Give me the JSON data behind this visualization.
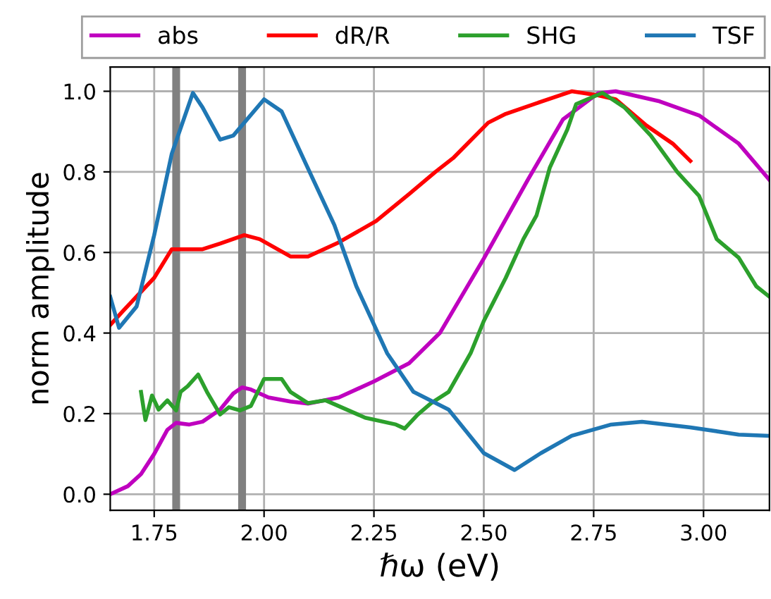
{
  "chart_data": {
    "type": "line",
    "xlabel": "ℏω (eV)",
    "ylabel": "norm amplitude",
    "xlim": [
      1.65,
      3.15
    ],
    "ylim": [
      -0.04,
      1.06
    ],
    "xticks": [
      {
        "value": 1.75,
        "label": "1.75"
      },
      {
        "value": 2.0,
        "label": "2.00"
      },
      {
        "value": 2.25,
        "label": "2.25"
      },
      {
        "value": 2.5,
        "label": "2.50"
      },
      {
        "value": 2.75,
        "label": "2.75"
      },
      {
        "value": 3.0,
        "label": "3.00"
      }
    ],
    "yticks": [
      {
        "value": 0,
        "label": "0.0"
      },
      {
        "value": 0.2,
        "label": "0.2"
      },
      {
        "value": 0.4,
        "label": "0.4"
      },
      {
        "value": 0.6,
        "label": "0.6"
      },
      {
        "value": 0.8,
        "label": "0.8"
      },
      {
        "value": 1.0,
        "label": "1.0"
      }
    ],
    "grid": true,
    "legend": "top",
    "marker": "none",
    "line_style": "solid",
    "ref_lines": [
      {
        "axis": "x",
        "value": 1.8,
        "color": "#808080"
      },
      {
        "axis": "x",
        "value": 1.95,
        "color": "#808080"
      }
    ],
    "series": [
      {
        "name": "abs",
        "color": "#bf00bf",
        "x": [
          1.65,
          1.69,
          1.72,
          1.75,
          1.78,
          1.8,
          1.83,
          1.86,
          1.9,
          1.93,
          1.95,
          1.97,
          2.01,
          2.06,
          2.1,
          2.17,
          2.25,
          2.33,
          2.4,
          2.5,
          2.6,
          2.68,
          2.76,
          2.8,
          2.9,
          2.99,
          3.08,
          3.15
        ],
        "values": [
          0.0,
          0.02,
          0.05,
          0.1,
          0.16,
          0.177,
          0.173,
          0.18,
          0.21,
          0.25,
          0.265,
          0.26,
          0.24,
          0.23,
          0.225,
          0.24,
          0.28,
          0.325,
          0.4,
          0.585,
          0.78,
          0.93,
          0.995,
          1.0,
          0.975,
          0.94,
          0.87,
          0.78
        ]
      },
      {
        "name": "dR/R",
        "color": "#ff0000",
        "x": [
          1.65,
          1.68,
          1.75,
          1.79,
          1.86,
          1.9,
          1.955,
          1.99,
          2.06,
          2.1,
          2.17,
          2.255,
          2.33,
          2.39,
          2.43,
          2.51,
          2.55,
          2.63,
          2.7,
          2.76,
          2.8,
          2.87,
          2.93,
          2.97
        ],
        "values": [
          0.42,
          0.456,
          0.537,
          0.608,
          0.608,
          0.622,
          0.643,
          0.633,
          0.59,
          0.59,
          0.625,
          0.678,
          0.745,
          0.8,
          0.834,
          0.922,
          0.944,
          0.974,
          1.0,
          0.99,
          0.98,
          0.915,
          0.87,
          0.827
        ]
      },
      {
        "name": "SHG",
        "color": "#2ca02c",
        "x": [
          1.72,
          1.73,
          1.745,
          1.76,
          1.78,
          1.8,
          1.81,
          1.826,
          1.85,
          1.87,
          1.9,
          1.92,
          1.945,
          1.97,
          2.0,
          2.04,
          2.06,
          2.1,
          2.14,
          2.23,
          2.3,
          2.32,
          2.35,
          2.38,
          2.42,
          2.47,
          2.5,
          2.55,
          2.59,
          2.62,
          2.65,
          2.69,
          2.71,
          2.77,
          2.82,
          2.88,
          2.94,
          2.99,
          3.03,
          3.08,
          3.12,
          3.15
        ],
        "values": [
          0.254,
          0.184,
          0.245,
          0.21,
          0.233,
          0.208,
          0.254,
          0.268,
          0.297,
          0.254,
          0.198,
          0.216,
          0.208,
          0.219,
          0.286,
          0.286,
          0.254,
          0.226,
          0.233,
          0.19,
          0.173,
          0.163,
          0.198,
          0.226,
          0.254,
          0.35,
          0.43,
          0.537,
          0.633,
          0.692,
          0.81,
          0.905,
          0.968,
          0.996,
          0.96,
          0.89,
          0.8,
          0.74,
          0.633,
          0.587,
          0.516,
          0.49
        ]
      },
      {
        "name": "TSF",
        "color": "#1f77b4",
        "x": [
          1.65,
          1.67,
          1.71,
          1.75,
          1.79,
          1.838,
          1.86,
          1.9,
          1.93,
          2.0,
          2.04,
          2.095,
          2.16,
          2.21,
          2.28,
          2.34,
          2.42,
          2.5,
          2.57,
          2.63,
          2.7,
          2.79,
          2.86,
          2.97,
          3.08,
          3.15
        ],
        "values": [
          0.49,
          0.413,
          0.466,
          0.643,
          0.845,
          0.996,
          0.96,
          0.88,
          0.89,
          0.98,
          0.95,
          0.82,
          0.668,
          0.516,
          0.35,
          0.254,
          0.21,
          0.102,
          0.06,
          0.102,
          0.145,
          0.173,
          0.18,
          0.166,
          0.148,
          0.145
        ]
      }
    ]
  }
}
